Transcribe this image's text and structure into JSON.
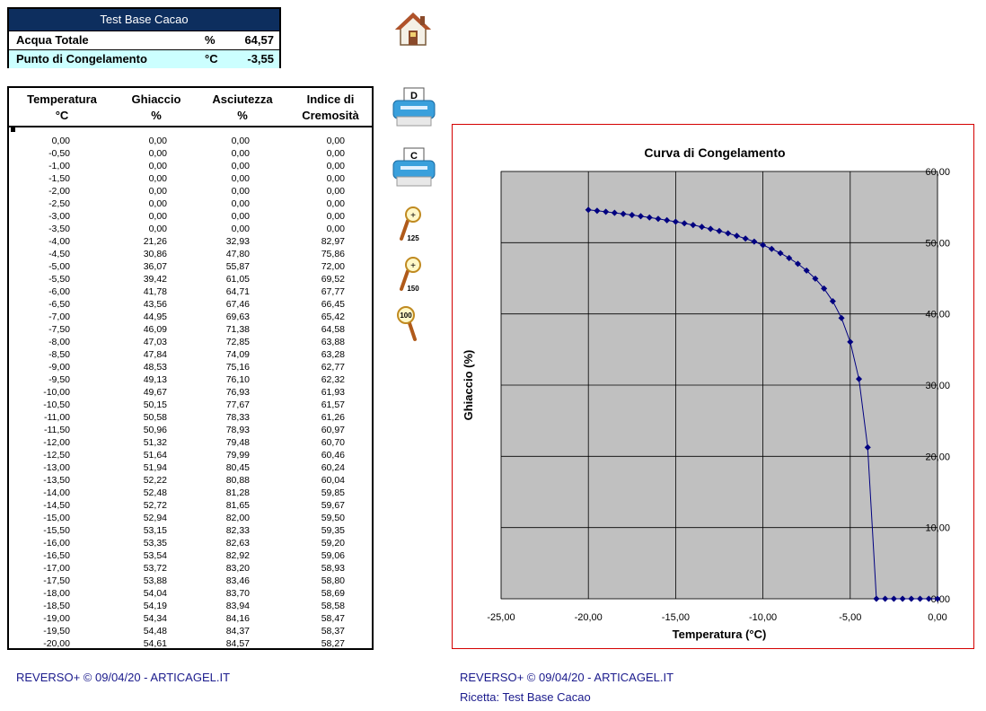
{
  "summary": {
    "title": "Test Base Cacao",
    "rows": [
      {
        "label": "Acqua Totale",
        "unit": "%",
        "value": "64,57"
      },
      {
        "label": "Punto di Congelamento",
        "unit": "°C",
        "value": "-3,55"
      }
    ]
  },
  "table": {
    "headers": [
      {
        "line1": "Temperatura",
        "line2": "°C"
      },
      {
        "line1": "Ghiaccio",
        "line2": "%"
      },
      {
        "line1": "Asciutezza",
        "line2": "%"
      },
      {
        "line1": "Indice di",
        "line2": "Cremosità"
      }
    ],
    "rows": [
      [
        "0,00",
        "0,00",
        "0,00",
        "0,00"
      ],
      [
        "-0,50",
        "0,00",
        "0,00",
        "0,00"
      ],
      [
        "-1,00",
        "0,00",
        "0,00",
        "0,00"
      ],
      [
        "-1,50",
        "0,00",
        "0,00",
        "0,00"
      ],
      [
        "-2,00",
        "0,00",
        "0,00",
        "0,00"
      ],
      [
        "-2,50",
        "0,00",
        "0,00",
        "0,00"
      ],
      [
        "-3,00",
        "0,00",
        "0,00",
        "0,00"
      ],
      [
        "-3,50",
        "0,00",
        "0,00",
        "0,00"
      ],
      [
        "-4,00",
        "21,26",
        "32,93",
        "82,97"
      ],
      [
        "-4,50",
        "30,86",
        "47,80",
        "75,86"
      ],
      [
        "-5,00",
        "36,07",
        "55,87",
        "72,00"
      ],
      [
        "-5,50",
        "39,42",
        "61,05",
        "69,52"
      ],
      [
        "-6,00",
        "41,78",
        "64,71",
        "67,77"
      ],
      [
        "-6,50",
        "43,56",
        "67,46",
        "66,45"
      ],
      [
        "-7,00",
        "44,95",
        "69,63",
        "65,42"
      ],
      [
        "-7,50",
        "46,09",
        "71,38",
        "64,58"
      ],
      [
        "-8,00",
        "47,03",
        "72,85",
        "63,88"
      ],
      [
        "-8,50",
        "47,84",
        "74,09",
        "63,28"
      ],
      [
        "-9,00",
        "48,53",
        "75,16",
        "62,77"
      ],
      [
        "-9,50",
        "49,13",
        "76,10",
        "62,32"
      ],
      [
        "-10,00",
        "49,67",
        "76,93",
        "61,93"
      ],
      [
        "-10,50",
        "50,15",
        "77,67",
        "61,57"
      ],
      [
        "-11,00",
        "50,58",
        "78,33",
        "61,26"
      ],
      [
        "-11,50",
        "50,96",
        "78,93",
        "60,97"
      ],
      [
        "-12,00",
        "51,32",
        "79,48",
        "60,70"
      ],
      [
        "-12,50",
        "51,64",
        "79,99",
        "60,46"
      ],
      [
        "-13,00",
        "51,94",
        "80,45",
        "60,24"
      ],
      [
        "-13,50",
        "52,22",
        "80,88",
        "60,04"
      ],
      [
        "-14,00",
        "52,48",
        "81,28",
        "59,85"
      ],
      [
        "-14,50",
        "52,72",
        "81,65",
        "59,67"
      ],
      [
        "-15,00",
        "52,94",
        "82,00",
        "59,50"
      ],
      [
        "-15,50",
        "53,15",
        "82,33",
        "59,35"
      ],
      [
        "-16,00",
        "53,35",
        "82,63",
        "59,20"
      ],
      [
        "-16,50",
        "53,54",
        "82,92",
        "59,06"
      ],
      [
        "-17,00",
        "53,72",
        "83,20",
        "58,93"
      ],
      [
        "-17,50",
        "53,88",
        "83,46",
        "58,80"
      ],
      [
        "-18,00",
        "54,04",
        "83,70",
        "58,69"
      ],
      [
        "-18,50",
        "54,19",
        "83,94",
        "58,58"
      ],
      [
        "-19,00",
        "54,34",
        "84,16",
        "58,47"
      ],
      [
        "-19,50",
        "54,48",
        "84,37",
        "58,37"
      ],
      [
        "-20,00",
        "54,61",
        "84,57",
        "58,27"
      ]
    ]
  },
  "toolbar": {
    "home_icon": "house-icon",
    "print_d_label": "D",
    "print_c_label": "C",
    "zoom_125_label": "125",
    "zoom_150_label": "150",
    "zoom_100_label": "100"
  },
  "colors": {
    "header_bg": "#0d2e5e",
    "highlight_row": "#ccffff",
    "plot_bg": "#c0c0c0",
    "series": "#000080",
    "frame": "#d40000",
    "footer_text": "#1a1a8c"
  },
  "chart_data": {
    "type": "line",
    "title": "Curva di Congelamento",
    "xlabel": "Temperatura (°C)",
    "ylabel": "Ghiaccio (%)",
    "xlim": [
      -25,
      0
    ],
    "ylim": [
      0,
      60
    ],
    "xticks": [
      "-25,00",
      "-20,00",
      "-15,00",
      "-10,00",
      "-5,00",
      "0,00"
    ],
    "yticks": [
      "0,00",
      "10,00",
      "20,00",
      "30,00",
      "40,00",
      "50,00",
      "60,00"
    ],
    "grid": true,
    "legend": "none",
    "series": [
      {
        "x": [
          0,
          -0.5,
          -1,
          -1.5,
          -2,
          -2.5,
          -3,
          -3.5,
          -4,
          -4.5,
          -5,
          -5.5,
          -6,
          -6.5,
          -7,
          -7.5,
          -8,
          -8.5,
          -9,
          -9.5,
          -10,
          -10.5,
          -11,
          -11.5,
          -12,
          -12.5,
          -13,
          -13.5,
          -14,
          -14.5,
          -15,
          -15.5,
          -16,
          -16.5,
          -17,
          -17.5,
          -18,
          -18.5,
          -19,
          -19.5,
          -20
        ],
        "y": [
          0,
          0,
          0,
          0,
          0,
          0,
          0,
          0,
          21.26,
          30.86,
          36.07,
          39.42,
          41.78,
          43.56,
          44.95,
          46.09,
          47.03,
          47.84,
          48.53,
          49.13,
          49.67,
          50.15,
          50.58,
          50.96,
          51.32,
          51.64,
          51.94,
          52.22,
          52.48,
          52.72,
          52.94,
          53.15,
          53.35,
          53.54,
          53.72,
          53.88,
          54.04,
          54.19,
          54.34,
          54.48,
          54.61
        ]
      }
    ]
  },
  "footer": {
    "left": "REVERSO+ © 09/04/20 - ARTICAGEL.IT",
    "right": "REVERSO+ © 09/04/20 - ARTICAGEL.IT",
    "recipe": "Ricetta: Test Base Cacao"
  }
}
